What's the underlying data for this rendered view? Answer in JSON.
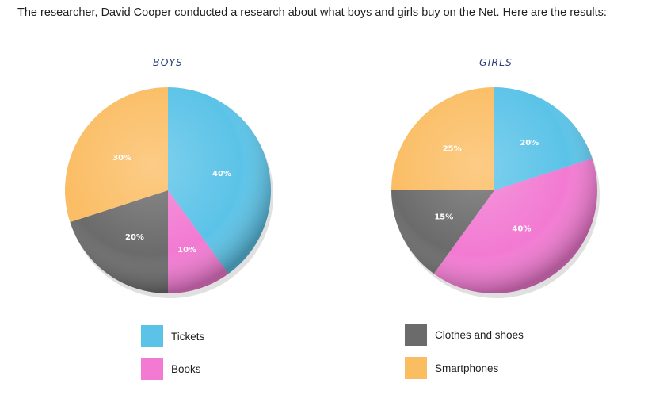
{
  "intro_text": "The researcher, David Cooper conducted a research about what boys and girls buy on the Net. Here are the results:",
  "legend": [
    {
      "label": "Tickets",
      "color": "#5bc3e8"
    },
    {
      "label": "Books",
      "color": "#f27ad2"
    },
    {
      "label": "Clothes and shoes",
      "color": "#6b6b6b"
    },
    {
      "label": "Smartphones",
      "color": "#fbbd64"
    }
  ],
  "chart_data": [
    {
      "type": "pie",
      "title": "BOYS",
      "slices": [
        {
          "category": "Tickets",
          "value": 40,
          "label": "40%"
        },
        {
          "category": "Books",
          "value": 10,
          "label": "10%"
        },
        {
          "category": "Clothes and shoes",
          "value": 20,
          "label": "20%"
        },
        {
          "category": "Smartphones",
          "value": 30,
          "label": "30%"
        }
      ]
    },
    {
      "type": "pie",
      "title": "GIRLS",
      "slices": [
        {
          "category": "Tickets",
          "value": 20,
          "label": "20%"
        },
        {
          "category": "Books",
          "value": 40,
          "label": "40%"
        },
        {
          "category": "Clothes and shoes",
          "value": 15,
          "label": "15%"
        },
        {
          "category": "Smartphones",
          "value": 25,
          "label": "25%"
        }
      ]
    }
  ]
}
